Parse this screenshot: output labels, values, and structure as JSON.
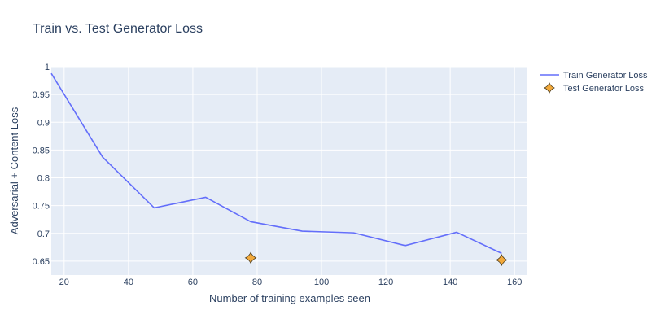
{
  "chart_data": {
    "type": "line",
    "title": "Train vs. Test Generator Loss",
    "xlabel": "Number of training examples seen",
    "ylabel": "Adversarial + Content Loss",
    "xlim": [
      16,
      164
    ],
    "ylim": [
      0.625,
      1.0
    ],
    "x_ticks": [
      20,
      40,
      60,
      80,
      100,
      120,
      140,
      160
    ],
    "y_ticks": [
      0.65,
      0.7,
      0.75,
      0.8,
      0.85,
      0.9,
      0.95,
      1
    ],
    "grid": true,
    "legend_position": "top-right",
    "background_color": "#E5ECF6",
    "series": [
      {
        "name": "Train Generator Loss",
        "mode": "line",
        "color": "#636EFA",
        "x": [
          16,
          32,
          48,
          64,
          78,
          94,
          110,
          126,
          142,
          156
        ],
        "y": [
          0.988,
          0.837,
          0.746,
          0.765,
          0.721,
          0.704,
          0.701,
          0.678,
          0.702,
          0.664
        ]
      },
      {
        "name": "Test Generator Loss",
        "mode": "markers",
        "marker": "star-diamond",
        "color": "#F2A93B",
        "x": [
          78,
          156
        ],
        "y": [
          0.656,
          0.652
        ]
      }
    ]
  }
}
